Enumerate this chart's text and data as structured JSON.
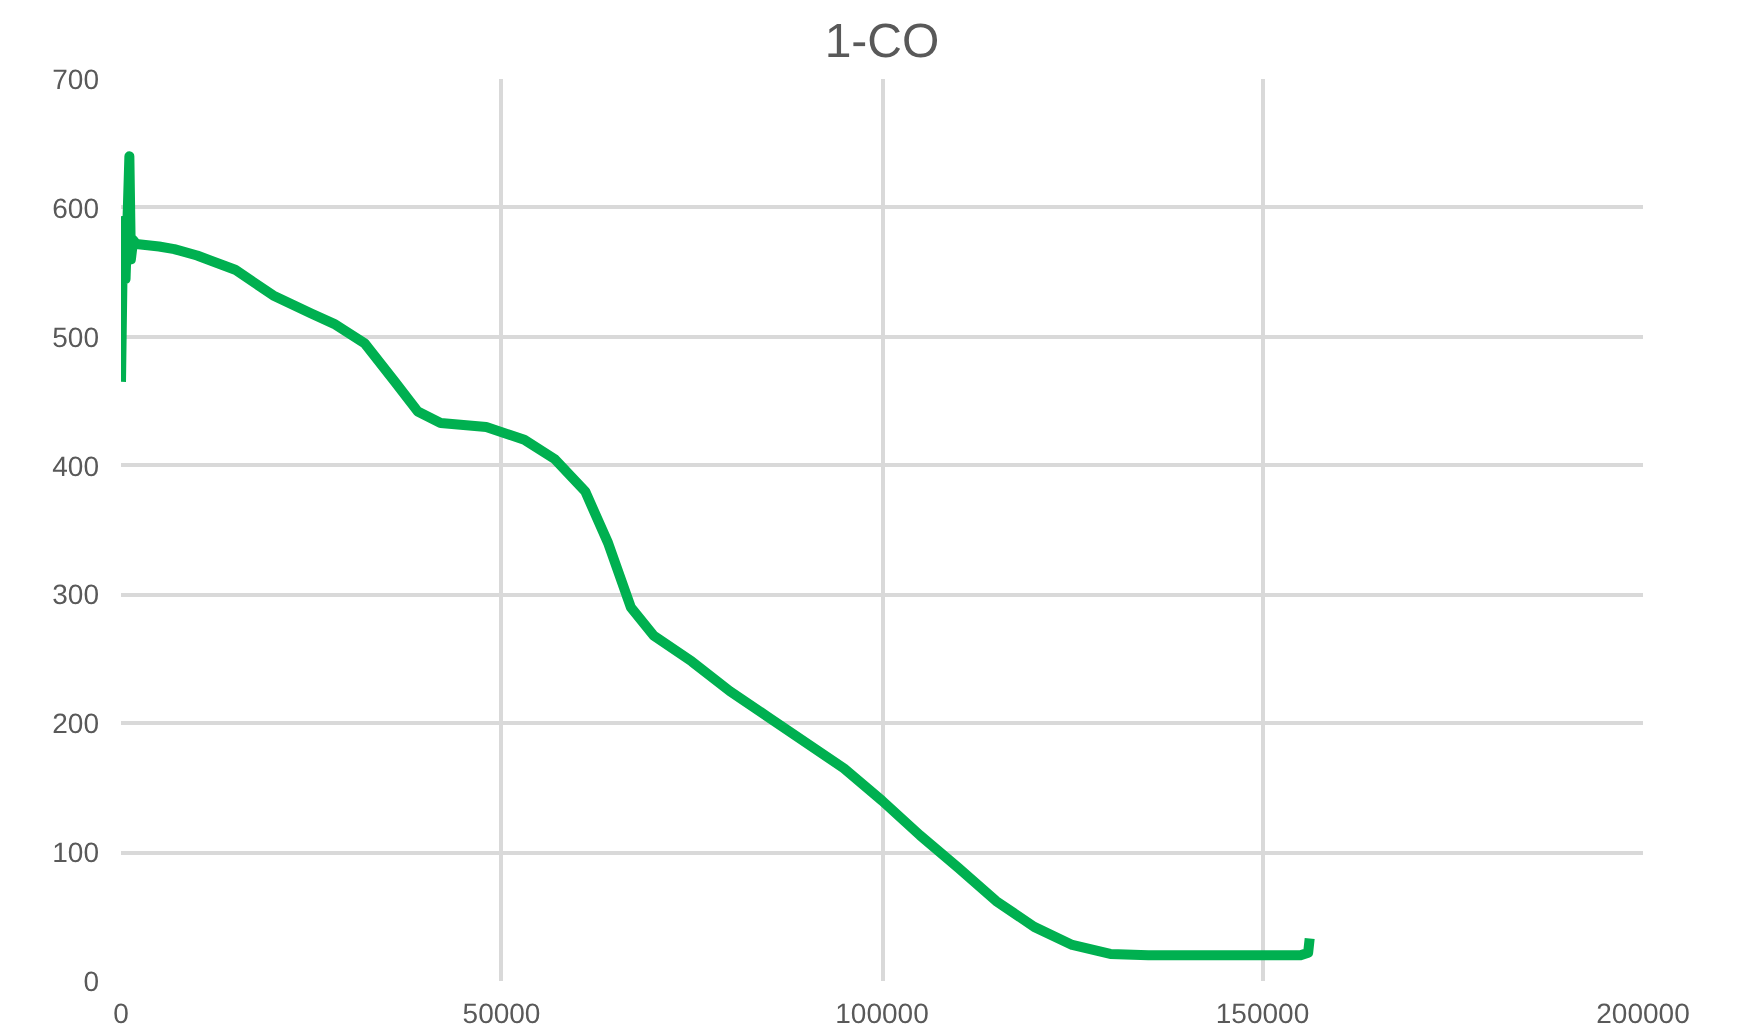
{
  "chart_data": {
    "type": "line",
    "title": "1-CO",
    "x": [
      0,
      300,
      600,
      900,
      1100,
      1300,
      1600,
      2000,
      5000,
      7000,
      10000,
      15000,
      20000,
      25000,
      28000,
      32000,
      36000,
      39000,
      42000,
      48000,
      53000,
      57000,
      61000,
      64000,
      67000,
      70000,
      75000,
      80000,
      85000,
      90000,
      95000,
      100000,
      105000,
      110000,
      115000,
      120000,
      125000,
      130000,
      135000,
      145000,
      155000,
      156000,
      156200
    ],
    "series": [
      {
        "color": "#00b050",
        "values": [
          465,
          590,
          545,
          600,
          640,
          560,
          575,
          572,
          570,
          568,
          563,
          552,
          532,
          518,
          510,
          495,
          465,
          442,
          433,
          430,
          420,
          405,
          380,
          340,
          290,
          268,
          248,
          225,
          205,
          185,
          165,
          140,
          113,
          88,
          62,
          42,
          28,
          21,
          20,
          20,
          20,
          22,
          33
        ]
      }
    ],
    "xlim": [
      0,
      200000
    ],
    "xticks": [
      0,
      50000,
      100000,
      150000,
      200000
    ],
    "ylim": [
      0,
      700
    ],
    "yticks": [
      0,
      100,
      200,
      300,
      400,
      500,
      600,
      700
    ],
    "grid": true,
    "marker": "none",
    "line_style": "solid"
  }
}
